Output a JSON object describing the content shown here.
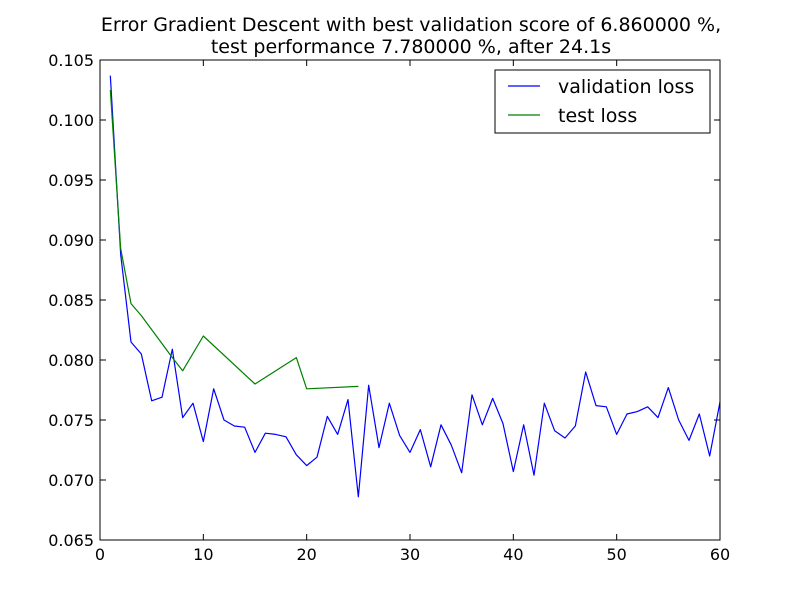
{
  "chart_data": {
    "type": "line",
    "title": "Error Gradient Descent with best validation score of 6.860000 %,",
    "subtitle": "test performance 7.780000 %, after 24.1s",
    "xlabel": "",
    "ylabel": "",
    "xlim": [
      0,
      60
    ],
    "ylim": [
      0.065,
      0.105
    ],
    "x_ticks": [
      "0",
      "10",
      "20",
      "30",
      "40",
      "50",
      "60"
    ],
    "y_ticks": [
      "0.065",
      "0.070",
      "0.075",
      "0.080",
      "0.085",
      "0.090",
      "0.095",
      "0.100",
      "0.105"
    ],
    "grid": false,
    "legend_position": "top-right",
    "series": [
      {
        "name": "validation loss",
        "color": "#0000ff",
        "x": [
          1,
          2,
          3,
          4,
          5,
          6,
          7,
          8,
          9,
          10,
          11,
          12,
          13,
          14,
          15,
          16,
          17,
          18,
          19,
          20,
          21,
          22,
          23,
          24,
          25,
          26,
          27,
          28,
          29,
          30,
          31,
          32,
          33,
          34,
          35,
          36,
          37,
          38,
          39,
          40,
          41,
          42,
          43,
          44,
          45,
          46,
          47,
          48,
          49,
          50,
          51,
          52,
          53,
          54,
          55,
          56,
          57,
          58,
          59,
          60
        ],
        "y": [
          0.1037,
          0.0888,
          0.0815,
          0.0805,
          0.0766,
          0.0769,
          0.0809,
          0.0752,
          0.0764,
          0.0732,
          0.0776,
          0.075,
          0.0745,
          0.0744,
          0.0723,
          0.0739,
          0.0738,
          0.0736,
          0.0721,
          0.0712,
          0.0719,
          0.0753,
          0.0738,
          0.0767,
          0.0686,
          0.0779,
          0.0727,
          0.0764,
          0.0737,
          0.0723,
          0.0742,
          0.0711,
          0.0746,
          0.0729,
          0.0706,
          0.0771,
          0.0746,
          0.0768,
          0.0747,
          0.0707,
          0.0746,
          0.0704,
          0.0764,
          0.0741,
          0.0735,
          0.0745,
          0.079,
          0.0762,
          0.0761,
          0.0738,
          0.0755,
          0.0757,
          0.0761,
          0.0752,
          0.0777,
          0.075,
          0.0733,
          0.0755,
          0.072,
          0.0765
        ]
      },
      {
        "name": "test loss",
        "color": "#008000",
        "x": [
          1,
          2,
          3,
          4,
          7,
          8,
          10,
          15,
          19,
          20,
          25
        ],
        "y": [
          0.1025,
          0.0893,
          0.0847,
          0.0837,
          0.0802,
          0.0791,
          0.082,
          0.078,
          0.0802,
          0.0776,
          0.0778
        ]
      }
    ]
  }
}
